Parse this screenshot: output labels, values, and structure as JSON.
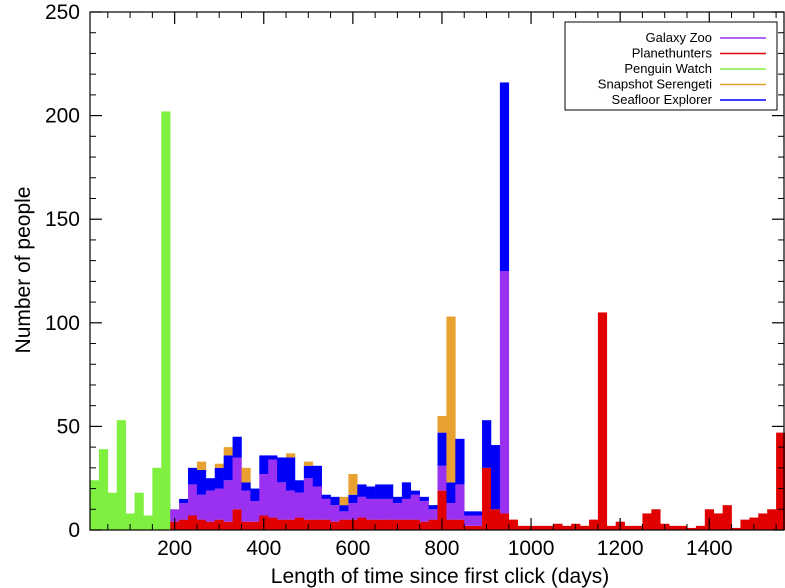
{
  "chart_data": {
    "type": "bar",
    "stacked": true,
    "title": "",
    "xlabel": "Length of time since first click (days)",
    "ylabel": "Number of people",
    "xlim": [
      10,
      1570
    ],
    "ylim": [
      0,
      250
    ],
    "xticks": [
      200,
      400,
      600,
      800,
      1000,
      1200,
      1400
    ],
    "yticks": [
      0,
      50,
      100,
      150,
      200,
      250
    ],
    "grid": false,
    "legend_position": "top-right",
    "bin_width": 20,
    "x": [
      20,
      40,
      60,
      80,
      100,
      120,
      140,
      160,
      180,
      200,
      220,
      240,
      260,
      280,
      300,
      320,
      340,
      360,
      380,
      400,
      420,
      440,
      460,
      480,
      500,
      520,
      540,
      560,
      580,
      600,
      620,
      640,
      660,
      680,
      700,
      720,
      740,
      760,
      780,
      800,
      820,
      840,
      860,
      880,
      900,
      920,
      940,
      960,
      980,
      1000,
      1020,
      1040,
      1060,
      1080,
      1100,
      1120,
      1140,
      1160,
      1180,
      1200,
      1220,
      1240,
      1260,
      1280,
      1300,
      1320,
      1340,
      1360,
      1380,
      1400,
      1420,
      1440,
      1460,
      1480,
      1500,
      1520,
      1540,
      1560
    ],
    "series": [
      {
        "name": "Planethunters",
        "color": "#e00000",
        "values": [
          0,
          0,
          0,
          0,
          0,
          0,
          0,
          0,
          0,
          4,
          5,
          7,
          5,
          4,
          5,
          4,
          10,
          4,
          4,
          7,
          6,
          5,
          5,
          6,
          5,
          5,
          5,
          4,
          5,
          5,
          6,
          5,
          5,
          5,
          5,
          5,
          5,
          4,
          5,
          19,
          5,
          5,
          2,
          2,
          30,
          10,
          8,
          5,
          2,
          2,
          2,
          2,
          3,
          2,
          3,
          2,
          5,
          105,
          2,
          4,
          2,
          2,
          8,
          10,
          3,
          2,
          2,
          1,
          2,
          10,
          8,
          12,
          1,
          5,
          6,
          8,
          10,
          47
        ]
      },
      {
        "name": "Galaxy Zoo",
        "color": "#9a30f0",
        "values": [
          0,
          0,
          0,
          0,
          0,
          0,
          0,
          0,
          0,
          6,
          8,
          15,
          12,
          15,
          15,
          20,
          25,
          15,
          10,
          20,
          28,
          18,
          14,
          12,
          20,
          16,
          10,
          8,
          4,
          8,
          10,
          10,
          10,
          10,
          8,
          10,
          12,
          10,
          5,
          12,
          8,
          17,
          5,
          5,
          0,
          0,
          117,
          0,
          0,
          0,
          0,
          0,
          0,
          0,
          0,
          0,
          0,
          0,
          0,
          0,
          0,
          0,
          0,
          0,
          0,
          0,
          0,
          0,
          0,
          0,
          0,
          0,
          0,
          0,
          0,
          0,
          0,
          0
        ]
      },
      {
        "name": "Seafloor Explorer",
        "color": "#0000f8",
        "values": [
          0,
          0,
          0,
          0,
          0,
          0,
          0,
          0,
          0,
          0,
          2,
          8,
          12,
          6,
          10,
          12,
          10,
          4,
          6,
          9,
          2,
          12,
          16,
          6,
          6,
          10,
          2,
          4,
          3,
          4,
          6,
          6,
          7,
          7,
          3,
          8,
          2,
          2,
          2,
          16,
          10,
          22,
          2,
          2,
          23,
          31,
          91,
          0,
          0,
          0,
          0,
          0,
          0,
          0,
          0,
          0,
          0,
          0,
          0,
          0,
          0,
          0,
          0,
          0,
          0,
          0,
          0,
          0,
          0,
          0,
          0,
          0,
          0,
          0,
          0,
          0,
          0,
          0
        ]
      },
      {
        "name": "Snapshot Serengeti",
        "color": "#e8a030",
        "values": [
          0,
          0,
          0,
          0,
          0,
          0,
          0,
          0,
          0,
          0,
          0,
          0,
          4,
          0,
          2,
          4,
          0,
          7,
          0,
          0,
          0,
          0,
          2,
          0,
          2,
          0,
          0,
          0,
          4,
          10,
          0,
          0,
          0,
          0,
          0,
          0,
          0,
          0,
          0,
          8,
          80,
          0,
          0,
          0,
          0,
          0,
          0,
          0,
          0,
          0,
          0,
          0,
          0,
          0,
          0,
          0,
          0,
          0,
          0,
          0,
          0,
          0,
          0,
          0,
          0,
          0,
          0,
          0,
          0,
          0,
          0,
          0,
          0,
          0,
          0,
          0,
          0,
          0
        ]
      },
      {
        "name": "Penguin Watch",
        "color": "#80f040",
        "values": [
          24,
          39,
          18,
          53,
          8,
          18,
          7,
          30,
          202,
          0,
          0,
          0,
          0,
          0,
          0,
          0,
          0,
          0,
          0,
          0,
          0,
          0,
          0,
          0,
          0,
          0,
          0,
          0,
          0,
          0,
          0,
          0,
          0,
          0,
          0,
          0,
          0,
          0,
          0,
          0,
          0,
          0,
          0,
          0,
          0,
          0,
          0,
          0,
          0,
          0,
          0,
          0,
          0,
          0,
          0,
          0,
          0,
          0,
          0,
          0,
          0,
          0,
          0,
          0,
          0,
          0,
          0,
          0,
          0,
          0,
          0,
          0,
          0,
          0,
          0,
          0,
          0,
          0
        ]
      }
    ],
    "legend": [
      {
        "name": "Galaxy Zoo",
        "color": "#9a30f0"
      },
      {
        "name": "Planethunters",
        "color": "#e00000"
      },
      {
        "name": "Penguin Watch",
        "color": "#80f040"
      },
      {
        "name": "Snapshot Serengeti",
        "color": "#e8a030"
      },
      {
        "name": "Seafloor Explorer",
        "color": "#0000f8"
      }
    ]
  }
}
